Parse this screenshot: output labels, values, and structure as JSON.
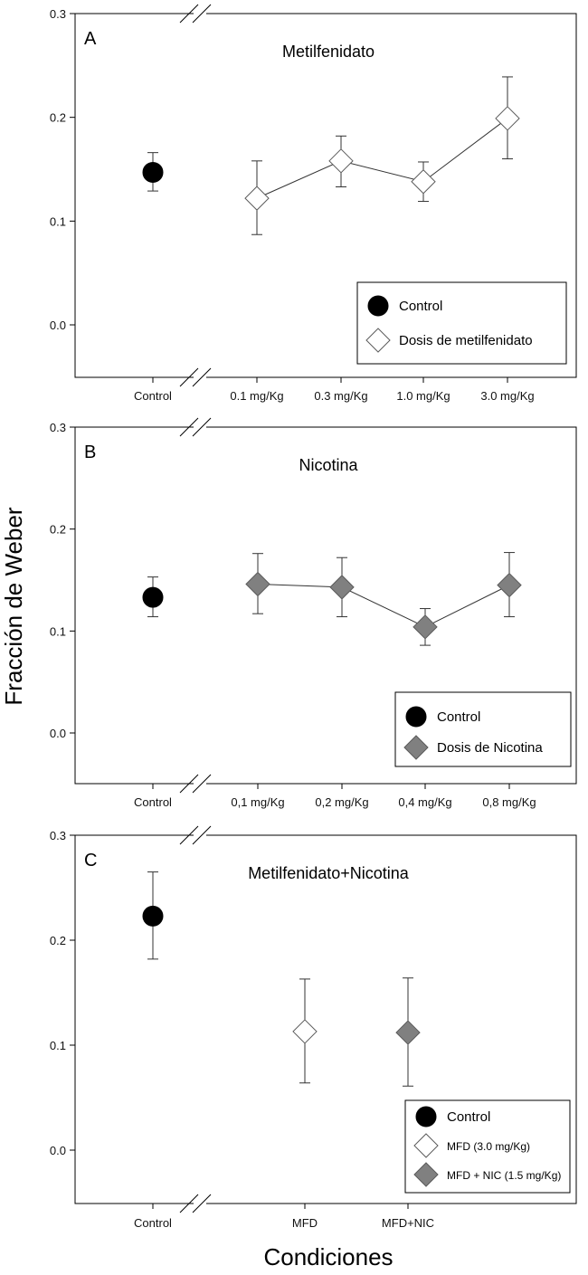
{
  "ylabel": "Fracción de Weber",
  "xlabel": "Condiciones",
  "chart_data": [
    {
      "type": "scatter",
      "panel": "A",
      "title": "Metilfenidato",
      "ylim": [
        -0.05,
        0.3
      ],
      "yticks": [
        "0.3",
        "0.2",
        "0.1",
        "0.0"
      ],
      "categories": [
        "Control",
        "0.1 mg/Kg",
        "0.3 mg/Kg",
        "1.0 mg/Kg",
        "3.0 mg/Kg"
      ],
      "series": [
        {
          "name": "Control",
          "marker": "circle",
          "fill": "#000000",
          "connect": false,
          "points": [
            {
              "x": 0,
              "y": 0.147,
              "err_low": 0.129,
              "err_high": 0.166
            }
          ]
        },
        {
          "name": "Dosis de metilfenidato",
          "marker": "diamond",
          "fill": "#ffffff",
          "connect": true,
          "points": [
            {
              "x": 1,
              "y": 0.122,
              "err_low": 0.087,
              "err_high": 0.158
            },
            {
              "x": 2,
              "y": 0.158,
              "err_low": 0.133,
              "err_high": 0.182
            },
            {
              "x": 3,
              "y": 0.138,
              "err_low": 0.119,
              "err_high": 0.157
            },
            {
              "x": 4,
              "y": 0.199,
              "err_low": 0.16,
              "err_high": 0.239
            }
          ]
        }
      ],
      "legend": {
        "placement": "bottom-right",
        "entries": [
          {
            "label": "Control",
            "marker": "circle",
            "fill": "#000000"
          },
          {
            "label": "Dosis de metilfenidato",
            "marker": "diamond",
            "fill": "#ffffff"
          }
        ]
      }
    },
    {
      "type": "scatter",
      "panel": "B",
      "title": "Nicotina",
      "ylim": [
        -0.05,
        0.3
      ],
      "yticks": [
        "0.3",
        "0.2",
        "0.1",
        "0.0"
      ],
      "categories": [
        "Control",
        "0,1 mg/Kg",
        "0,2  mg/Kg",
        "0,4  mg/Kg",
        "0,8  mg/Kg"
      ],
      "series": [
        {
          "name": "Control",
          "marker": "circle",
          "fill": "#000000",
          "connect": false,
          "points": [
            {
              "x": 0,
              "y": 0.133,
              "err_low": 0.114,
              "err_high": 0.153
            }
          ]
        },
        {
          "name": "Dosis de Nicotina",
          "marker": "diamond",
          "fill": "#808080",
          "connect": true,
          "points": [
            {
              "x": 1,
              "y": 0.146,
              "err_low": 0.117,
              "err_high": 0.176
            },
            {
              "x": 2,
              "y": 0.143,
              "err_low": 0.114,
              "err_high": 0.172
            },
            {
              "x": 3,
              "y": 0.104,
              "err_low": 0.086,
              "err_high": 0.122
            },
            {
              "x": 4,
              "y": 0.145,
              "err_low": 0.114,
              "err_high": 0.177
            }
          ]
        }
      ],
      "legend": {
        "placement": "bottom-right",
        "entries": [
          {
            "label": "Control",
            "marker": "circle",
            "fill": "#000000"
          },
          {
            "label": "Dosis de Nicotina",
            "marker": "diamond",
            "fill": "#808080"
          }
        ]
      }
    },
    {
      "type": "scatter",
      "panel": "C",
      "title": "Metilfenidato+Nicotina",
      "ylim": [
        -0.05,
        0.3
      ],
      "yticks": [
        "0.3",
        "0.2",
        "0.1",
        "0.0"
      ],
      "categories": [
        "Control",
        "MFD",
        "MFD+NIC"
      ],
      "series": [
        {
          "name": "Control",
          "marker": "circle",
          "fill": "#000000",
          "connect": false,
          "points": [
            {
              "x": 0,
              "y": 0.223,
              "err_low": 0.182,
              "err_high": 0.265
            }
          ]
        },
        {
          "name": "MFD (3.0 mg/Kg)",
          "marker": "diamond",
          "fill": "#ffffff",
          "connect": false,
          "points": [
            {
              "x": 1,
              "y": 0.113,
              "err_low": 0.064,
              "err_high": 0.163
            }
          ]
        },
        {
          "name": "MFD + NIC (1.5 mg/Kg)",
          "marker": "diamond",
          "fill": "#808080",
          "connect": false,
          "points": [
            {
              "x": 2,
              "y": 0.112,
              "err_low": 0.061,
              "err_high": 0.164
            }
          ]
        }
      ],
      "legend": {
        "placement": "bottom-right",
        "entries": [
          {
            "label": "Control",
            "marker": "circle",
            "fill": "#000000"
          },
          {
            "label": "MFD (3.0 mg/Kg)",
            "marker": "diamond",
            "fill": "#ffffff"
          },
          {
            "label": "MFD + NIC (1.5 mg/Kg)",
            "marker": "diamond",
            "fill": "#808080"
          }
        ]
      }
    }
  ]
}
